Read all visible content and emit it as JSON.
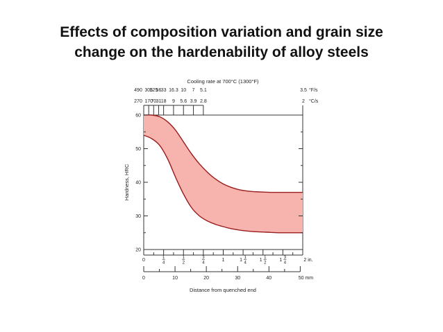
{
  "slide": {
    "title_line1": "Effects of composition variation and grain size",
    "title_line2": "change on the hardenability of alloy steels"
  },
  "colors": {
    "band_fill": "#f7b3ad",
    "band_edge": "#9a1c1c",
    "axis": "#333333"
  },
  "chart_data": {
    "type": "area",
    "title": "",
    "top_axis_title": "Cooling rate at 700°C (1300°F)",
    "top_axis_f_labels": [
      "490",
      "305",
      "125",
      "56",
      "33",
      "16.3",
      "10",
      "7",
      "5.1",
      "3.5"
    ],
    "top_axis_f_unit": "°F/s",
    "top_axis_c_labels": [
      "270",
      "170",
      "70",
      "31",
      "18",
      "9",
      "5.6",
      "3.9",
      "2.8",
      "2"
    ],
    "top_axis_c_unit": "°C/s",
    "top_axis_positions_in": [
      0,
      0.0625,
      0.125,
      0.1875,
      0.25,
      0.375,
      0.5,
      0.625,
      0.75,
      2.0
    ],
    "ylabel": "Hardness, HRC",
    "ylim": [
      20,
      60
    ],
    "yticks": [
      20,
      30,
      40,
      50,
      60
    ],
    "xlabel": "Distance from quenched end",
    "xlim_in": [
      0,
      2.0
    ],
    "inch_ticks": [
      "0",
      "1/4",
      "1/2",
      "3/4",
      "1",
      "1 1/4",
      "1 1/2",
      "1 3/4",
      "2 in."
    ],
    "mm_ticks": [
      "0",
      "10",
      "20",
      "30",
      "40",
      "50 mm"
    ],
    "series": [
      {
        "name": "upper bound",
        "x_in": [
          0,
          0.1,
          0.2,
          0.3,
          0.4,
          0.5,
          0.6,
          0.7,
          0.8,
          0.9,
          1.0,
          1.1,
          1.2,
          1.3,
          1.4,
          1.5,
          1.6,
          1.7,
          1.8,
          1.9,
          2.0
        ],
        "values": [
          60,
          60,
          59.5,
          58,
          55.5,
          52,
          48.5,
          45.5,
          43,
          41,
          39.5,
          38.5,
          37.8,
          37.4,
          37.2,
          37.1,
          37,
          37,
          37,
          37,
          37
        ]
      },
      {
        "name": "lower bound",
        "x_in": [
          0,
          0.1,
          0.2,
          0.3,
          0.4,
          0.5,
          0.6,
          0.7,
          0.8,
          0.9,
          1.0,
          1.1,
          1.2,
          1.3,
          1.4,
          1.5,
          1.6,
          1.7,
          1.8,
          1.9,
          2.0
        ],
        "values": [
          54,
          53,
          51,
          47,
          41.5,
          36.5,
          32.5,
          30,
          28.5,
          27.5,
          26.8,
          26.2,
          25.8,
          25.5,
          25.3,
          25.2,
          25.1,
          25,
          25,
          25,
          25
        ]
      }
    ]
  }
}
